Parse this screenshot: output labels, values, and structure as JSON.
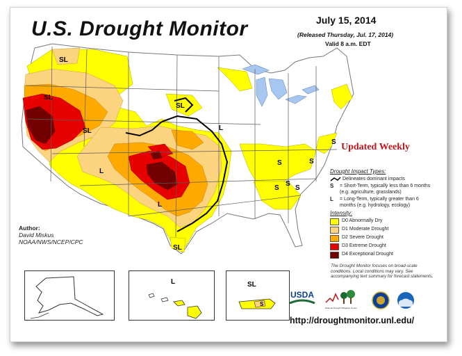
{
  "title": "U.S. Drought Monitor",
  "date": "July 15, 2014",
  "released": "(Released Thursday, Jul. 17, 2014)",
  "valid": "Valid 8 a.m. EDT",
  "updated_weekly": "Updated Weekly",
  "legend": {
    "impact_header": "Drought Impact Types:",
    "delineates": "Delineates dominant impacts",
    "short_term_key": "S",
    "short_term": "= Short-Term, typically less than 6 months (e.g. agriculture, grasslands)",
    "long_term_key": "L",
    "long_term": "= Long-Term, typically greater than 6 months (e.g. hydrology, ecology)",
    "intensity_header": "Intensity:",
    "categories": [
      {
        "label": "D0 Abnormally Dry",
        "color": "#ffff00"
      },
      {
        "label": "D1 Moderate Drought",
        "color": "#fcd37f"
      },
      {
        "label": "D2 Severe Drought",
        "color": "#ffaa00"
      },
      {
        "label": "D3 Extreme Drought",
        "color": "#e60000"
      },
      {
        "label": "D4 Exceptional Drought",
        "color": "#730000"
      }
    ]
  },
  "author": {
    "label": "Author:",
    "name": "David Miskus",
    "org": "NOAA/NWS/NCEP/CPC"
  },
  "footnote": "The Drought Monitor focuses on broad-scale conditions. Local conditions may vary. See accompanying text summary for forecast statements.",
  "url": "http://droughtmonitor.unl.edu/",
  "logos": {
    "usda": "USDA",
    "ndmc": "National Drought Mitigation Center"
  },
  "map_labels": {
    "sl": "SL",
    "s": "S",
    "l": "L"
  },
  "colors": {
    "d0": "#ffff00",
    "d1": "#fcd37f",
    "d2": "#ffaa00",
    "d3": "#e60000",
    "d4": "#730000",
    "water": "#a7c7f0",
    "land": "#ffffff"
  }
}
